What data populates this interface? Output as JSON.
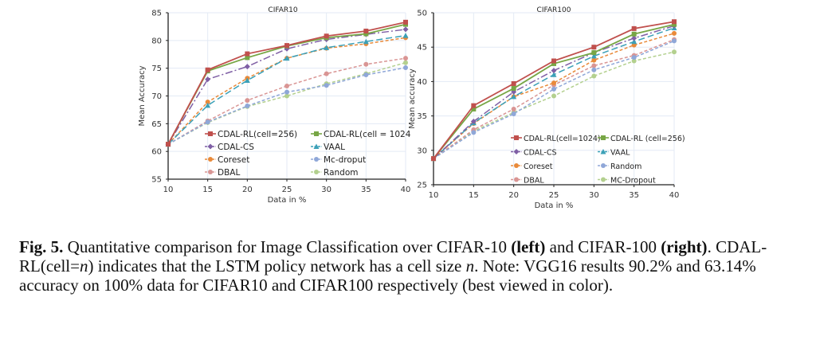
{
  "chart_data": [
    {
      "type": "line",
      "title": "CIFAR10",
      "xlabel": "Data in %",
      "ylabel": "Mean Accuracy",
      "x": [
        10,
        15,
        20,
        25,
        30,
        35,
        40
      ],
      "xticks": [
        "10",
        "15",
        "20",
        "25",
        "30",
        "35",
        "40"
      ],
      "yticks": [
        "55",
        "60",
        "65",
        "70",
        "75",
        "80",
        "85"
      ],
      "xlim": [
        10,
        40
      ],
      "ylim": [
        55,
        85
      ],
      "grid": true,
      "legend_position": "bottom-center-inside",
      "series": [
        {
          "name": "CDAL-RL(cell=256)",
          "color": "#c0504d",
          "dash": "solid",
          "marker": "square",
          "values": [
            61.3,
            74.7,
            77.6,
            79.1,
            80.8,
            81.7,
            83.3
          ]
        },
        {
          "name": "CDAL-RL(cell = 1024",
          "color": "#77a645",
          "dash": "solid",
          "marker": "square",
          "values": [
            61.3,
            74.5,
            76.9,
            79.0,
            80.5,
            81.2,
            82.9
          ]
        },
        {
          "name": "CDAL-CS",
          "color": "#7f5fa5",
          "dash": "dashdot",
          "marker": "diamond",
          "values": [
            61.3,
            73.0,
            75.3,
            78.5,
            80.2,
            81.1,
            82.0
          ]
        },
        {
          "name": "VAAL",
          "color": "#3ba0b7",
          "dash": "longdash",
          "marker": "triangle",
          "values": [
            61.3,
            68.3,
            72.8,
            76.8,
            78.7,
            79.8,
            80.9
          ]
        },
        {
          "name": "Coreset",
          "color": "#e98a3a",
          "dash": "dash",
          "marker": "circle",
          "values": [
            61.3,
            68.9,
            73.2,
            76.8,
            78.6,
            79.4,
            80.5
          ]
        },
        {
          "name": "Mc-droput",
          "color": "#8fa7d8",
          "dash": "dash",
          "marker": "circle",
          "values": [
            61.3,
            65.3,
            68.2,
            70.7,
            71.9,
            73.8,
            75.1
          ]
        },
        {
          "name": "DBAL",
          "color": "#d99594",
          "dash": "dash",
          "marker": "circle",
          "values": [
            61.3,
            65.5,
            69.2,
            71.8,
            74.0,
            75.7,
            76.8
          ]
        },
        {
          "name": "Random",
          "color": "#b3d08e",
          "dash": "dash",
          "marker": "circle",
          "values": [
            61.3,
            65.2,
            68.1,
            70.0,
            72.2,
            74.0,
            76.0
          ]
        }
      ]
    },
    {
      "type": "line",
      "title": "CIFAR100",
      "xlabel": "Data in %",
      "ylabel": "Mean accuracy",
      "x": [
        10,
        15,
        20,
        25,
        30,
        35,
        40
      ],
      "xticks": [
        "10",
        "15",
        "20",
        "25",
        "30",
        "35",
        "40"
      ],
      "yticks": [
        "25",
        "30",
        "35",
        "40",
        "45",
        "50"
      ],
      "xlim": [
        10,
        40
      ],
      "ylim": [
        25,
        50
      ],
      "grid": true,
      "legend_position": "bottom-right-inside",
      "series": [
        {
          "name": "CDAL-RL(cell=1024)",
          "color": "#c0504d",
          "dash": "solid",
          "marker": "square",
          "values": [
            28.8,
            36.5,
            39.7,
            43.0,
            45.0,
            47.7,
            48.7
          ]
        },
        {
          "name": "CDAL-RL (cell=256)",
          "color": "#77a645",
          "dash": "solid",
          "marker": "square",
          "values": [
            28.8,
            36.0,
            39.0,
            42.6,
            44.2,
            46.9,
            48.3
          ]
        },
        {
          "name": "CDAL-CS",
          "color": "#7f5fa5",
          "dash": "dashdot",
          "marker": "diamond",
          "values": [
            28.8,
            34.2,
            38.5,
            41.6,
            44.2,
            46.3,
            48.1
          ]
        },
        {
          "name": "VAAL",
          "color": "#3ba0b7",
          "dash": "longdash",
          "marker": "triangle",
          "values": [
            28.8,
            34.0,
            37.8,
            41.0,
            43.7,
            45.8,
            47.8
          ]
        },
        {
          "name": "Coreset",
          "color": "#e98a3a",
          "dash": "dash",
          "marker": "circle",
          "values": [
            28.8,
            33.9,
            37.8,
            39.8,
            43.1,
            45.3,
            47.0
          ]
        },
        {
          "name": "Random",
          "color": "#8fa7d8",
          "dash": "dash",
          "marker": "circle",
          "values": [
            28.8,
            32.6,
            35.3,
            38.9,
            41.7,
            43.5,
            45.9
          ]
        },
        {
          "name": "DBAL",
          "color": "#d99594",
          "dash": "dash",
          "marker": "circle",
          "values": [
            28.8,
            33.0,
            36.0,
            39.5,
            42.3,
            43.8,
            46.1
          ]
        },
        {
          "name": "MC-Dropout",
          "color": "#b3d08e",
          "dash": "dash",
          "marker": "circle",
          "values": [
            28.8,
            32.8,
            35.5,
            37.9,
            40.8,
            43.0,
            44.3
          ]
        }
      ]
    }
  ],
  "caption": {
    "fig_label": "Fig. 5.",
    "text_1": " Quantitative comparison for Image Classification over CIFAR-10 ",
    "left_label": "(left)",
    "text_2": " and CIFAR-100 ",
    "right_label": "(right)",
    "text_3": ". CDAL-RL(cell=",
    "var_n": "n",
    "text_4": ") indicates that the LSTM policy network has a cell size ",
    "var_n2": "n",
    "text_5": ". Note: VGG16 results 90.2% and 63.14% accuracy on 100% data for CIFAR10 and CIFAR100 respectively (best viewed in color)."
  }
}
